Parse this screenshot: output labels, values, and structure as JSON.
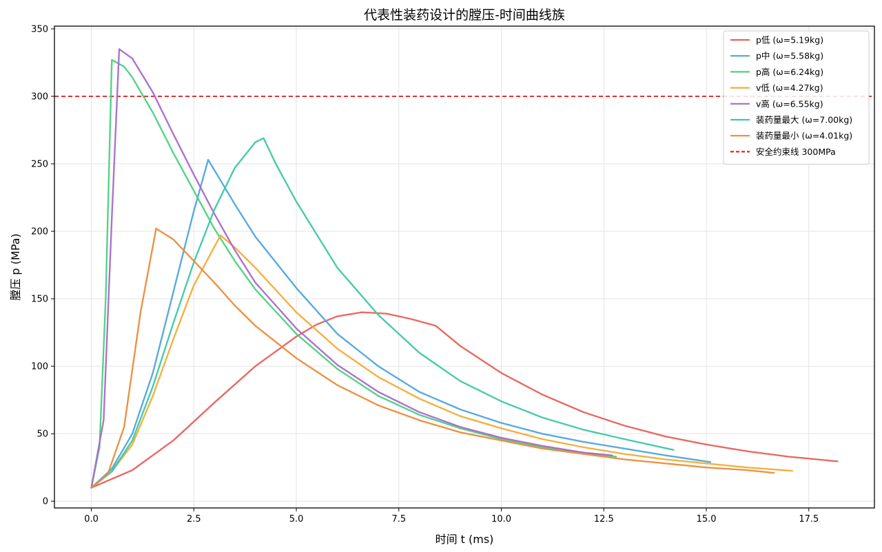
{
  "chart_data": {
    "type": "line",
    "title": "代表性装药设计的膛压-时间曲线族",
    "xlabel": "时间 t (ms)",
    "ylabel": "膛压 p (MPa)",
    "xlim": [
      -0.9,
      19.1
    ],
    "ylim": [
      -5,
      352
    ],
    "xticks": [
      0.0,
      2.5,
      5.0,
      7.5,
      10.0,
      12.5,
      15.0,
      17.5
    ],
    "xtick_labels": [
      "0.0",
      "2.5",
      "5.0",
      "7.5",
      "10.0",
      "12.5",
      "15.0",
      "17.5"
    ],
    "yticks": [
      0,
      50,
      100,
      150,
      200,
      250,
      300,
      350
    ],
    "ytick_labels": [
      "0",
      "50",
      "100",
      "150",
      "200",
      "250",
      "300",
      "350"
    ],
    "grid": true,
    "legend_position": "top-right",
    "series": [
      {
        "name": "p低 (ω=5.19kg)",
        "color": "#e8615a",
        "points": [
          [
            0,
            10
          ],
          [
            1,
            23
          ],
          [
            2,
            45
          ],
          [
            3,
            73
          ],
          [
            4,
            100
          ],
          [
            5,
            122
          ],
          [
            5.5,
            131
          ],
          [
            6,
            137
          ],
          [
            6.6,
            140
          ],
          [
            7.2,
            139
          ],
          [
            7.8,
            135
          ],
          [
            8.4,
            130
          ],
          [
            9,
            115
          ],
          [
            10,
            95
          ],
          [
            11,
            79
          ],
          [
            12,
            66
          ],
          [
            13,
            56
          ],
          [
            14,
            48
          ],
          [
            15,
            42
          ],
          [
            16,
            37
          ],
          [
            17,
            33
          ],
          [
            18.2,
            29.5
          ]
        ]
      },
      {
        "name": "p中 (ω=5.58kg)",
        "color": "#4ea6dc",
        "points": [
          [
            0,
            10
          ],
          [
            0.5,
            24
          ],
          [
            1,
            50
          ],
          [
            1.5,
            95
          ],
          [
            2,
            155
          ],
          [
            2.5,
            215
          ],
          [
            2.85,
            253
          ],
          [
            3.5,
            220
          ],
          [
            4,
            196
          ],
          [
            5,
            158
          ],
          [
            6,
            124
          ],
          [
            7,
            100
          ],
          [
            8,
            81
          ],
          [
            9,
            68
          ],
          [
            10,
            58
          ],
          [
            11,
            50
          ],
          [
            12,
            44
          ],
          [
            13,
            39
          ],
          [
            14,
            34
          ],
          [
            15.1,
            29
          ]
        ]
      },
      {
        "name": "p高 (ω=6.24kg)",
        "color": "#4cd180",
        "points": [
          [
            0,
            10
          ],
          [
            0.2,
            40
          ],
          [
            0.35,
            150
          ],
          [
            0.5,
            327
          ],
          [
            0.8,
            322
          ],
          [
            1,
            314
          ],
          [
            1.5,
            288
          ],
          [
            2,
            258
          ],
          [
            2.5,
            230
          ],
          [
            3,
            202
          ],
          [
            3.5,
            178
          ],
          [
            4,
            157
          ],
          [
            5,
            124
          ],
          [
            6,
            98
          ],
          [
            7,
            78
          ],
          [
            8,
            64
          ],
          [
            9,
            54
          ],
          [
            10,
            46
          ],
          [
            11,
            40
          ],
          [
            12,
            36
          ],
          [
            12.8,
            33
          ]
        ]
      },
      {
        "name": "v低 (ω=4.27kg)",
        "color": "#f5ab35",
        "points": [
          [
            0,
            10
          ],
          [
            0.5,
            22
          ],
          [
            1,
            42
          ],
          [
            1.5,
            78
          ],
          [
            2,
            120
          ],
          [
            2.5,
            160
          ],
          [
            3.15,
            197
          ],
          [
            3.5,
            188
          ],
          [
            4,
            173
          ],
          [
            5,
            140
          ],
          [
            6,
            113
          ],
          [
            7,
            92
          ],
          [
            8,
            76
          ],
          [
            9,
            63
          ],
          [
            10,
            54
          ],
          [
            11,
            46
          ],
          [
            12,
            40
          ],
          [
            13,
            35
          ],
          [
            14,
            31
          ],
          [
            15,
            28
          ],
          [
            16,
            25
          ],
          [
            17.1,
            22.5
          ]
        ]
      },
      {
        "name": "v高 (ω=6.55kg)",
        "color": "#a66bc9",
        "points": [
          [
            0,
            10
          ],
          [
            0.3,
            60
          ],
          [
            0.5,
            210
          ],
          [
            0.68,
            335
          ],
          [
            1,
            328
          ],
          [
            1.5,
            303
          ],
          [
            2,
            272
          ],
          [
            2.5,
            242
          ],
          [
            3,
            213
          ],
          [
            3.5,
            186
          ],
          [
            4,
            162
          ],
          [
            5,
            128
          ],
          [
            6,
            101
          ],
          [
            7,
            81
          ],
          [
            8,
            66
          ],
          [
            9,
            55
          ],
          [
            10,
            47
          ],
          [
            11,
            41
          ],
          [
            12,
            36
          ],
          [
            12.7,
            34
          ]
        ]
      },
      {
        "name": "装药量最大 (ω=7.00kg)",
        "color": "#3cc8a4",
        "points": [
          [
            0,
            10
          ],
          [
            0.5,
            22
          ],
          [
            1,
            45
          ],
          [
            1.5,
            85
          ],
          [
            2,
            132
          ],
          [
            2.5,
            177
          ],
          [
            3,
            216
          ],
          [
            3.5,
            247
          ],
          [
            4,
            266
          ],
          [
            4.2,
            269
          ],
          [
            4.5,
            250
          ],
          [
            5,
            222
          ],
          [
            6,
            173
          ],
          [
            7,
            138
          ],
          [
            8,
            110
          ],
          [
            9,
            89
          ],
          [
            10,
            74
          ],
          [
            11,
            62
          ],
          [
            12,
            53
          ],
          [
            13,
            46
          ],
          [
            14.2,
            38
          ]
        ]
      },
      {
        "name": "装药量最小 (ω=4.01kg)",
        "color": "#ea8c3c",
        "points": [
          [
            0,
            10
          ],
          [
            0.4,
            20
          ],
          [
            0.8,
            55
          ],
          [
            1.2,
            140
          ],
          [
            1.58,
            202
          ],
          [
            2,
            194
          ],
          [
            2.5,
            178
          ],
          [
            3,
            162
          ],
          [
            3.5,
            145
          ],
          [
            4,
            130
          ],
          [
            5,
            106
          ],
          [
            6,
            86
          ],
          [
            7,
            71
          ],
          [
            8,
            60
          ],
          [
            9,
            51
          ],
          [
            10,
            45
          ],
          [
            11,
            39
          ],
          [
            12,
            35
          ],
          [
            13,
            31
          ],
          [
            14,
            28
          ],
          [
            15,
            25
          ],
          [
            16,
            23
          ],
          [
            16.65,
            21
          ]
        ]
      }
    ],
    "reference_lines": [
      {
        "name": "安全约束线 300MPa",
        "y": 300,
        "color": "#d62728",
        "style": "dashed"
      }
    ]
  }
}
